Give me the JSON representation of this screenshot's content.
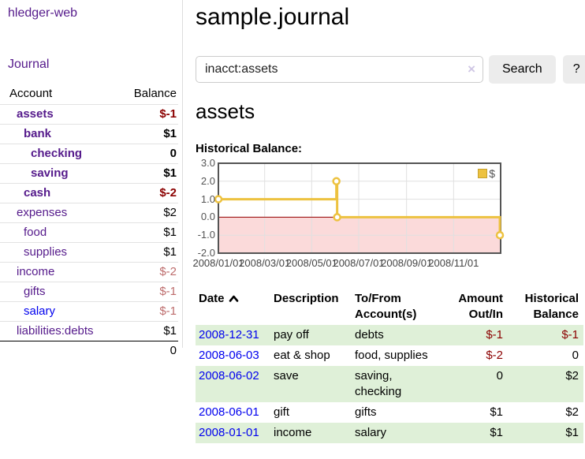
{
  "app": {
    "title": "hledger-web",
    "nav_journal": "Journal"
  },
  "sidebar": {
    "columns": {
      "account": "Account",
      "balance": "Balance"
    },
    "accounts": [
      {
        "name": "assets",
        "depth": 1,
        "bold": true,
        "balance": "$-1"
      },
      {
        "name": "bank",
        "depth": 2,
        "bold": true,
        "balance": "$1"
      },
      {
        "name": "checking",
        "depth": 3,
        "bold": true,
        "balance": "0"
      },
      {
        "name": "saving",
        "depth": 3,
        "bold": true,
        "balance": "$1"
      },
      {
        "name": "cash",
        "depth": 2,
        "bold": true,
        "balance": "$-2"
      },
      {
        "name": "expenses",
        "depth": 1,
        "bold": false,
        "balance": "$2"
      },
      {
        "name": "food",
        "depth": 2,
        "bold": false,
        "balance": "$1"
      },
      {
        "name": "supplies",
        "depth": 2,
        "bold": false,
        "balance": "$1"
      },
      {
        "name": "income",
        "depth": 1,
        "bold": false,
        "balance": "$-2"
      },
      {
        "name": "gifts",
        "depth": 2,
        "bold": false,
        "balance": "$-1"
      },
      {
        "name": "salary",
        "depth": 2,
        "bold": false,
        "balance": "$-1",
        "unvisited": true
      },
      {
        "name": "liabilities:debts",
        "depth": 1,
        "bold": false,
        "balance": "$1"
      }
    ],
    "total": "0"
  },
  "header": {
    "title": "sample.journal"
  },
  "search": {
    "value": "inacct:assets",
    "clear_icon": "×",
    "button": "Search",
    "help_button": "?"
  },
  "page": {
    "heading": "assets",
    "chart_label": "Historical Balance:"
  },
  "chart_data": {
    "type": "line",
    "title": "Historical Balance of assets",
    "series": [
      {
        "name": "$",
        "color": "#edc240",
        "step": true,
        "points": [
          [
            "2008-01-01",
            1
          ],
          [
            "2008-06-02",
            2
          ],
          [
            "2008-06-03",
            0
          ],
          [
            "2008-12-31",
            -1
          ]
        ]
      }
    ],
    "x_range": [
      "2008-01-01",
      "2009-01-01"
    ],
    "ylim": [
      -2,
      3
    ],
    "yticks": [
      3.0,
      2.0,
      1.0,
      0.0,
      -1.0,
      -2.0
    ],
    "xticks": [
      {
        "date": "2008-01-01",
        "label": "2008/01/01"
      },
      {
        "date": "2008-03-01",
        "label": "2008/03/01"
      },
      {
        "date": "2008-05-01",
        "label": "2008/05/01"
      },
      {
        "date": "2008-07-01",
        "label": "2008/07/01"
      },
      {
        "date": "2008-09-01",
        "label": "2008/09/01"
      },
      {
        "date": "2008-11-01",
        "label": "2008/11/01"
      }
    ],
    "legend": {
      "label": "$",
      "position": "top-right"
    },
    "grid": true,
    "grid_color": "#e0e0e0",
    "plot_border_color": "#545454",
    "negative_region_color": "#fbdada",
    "zero_line_color": "#990000"
  },
  "transactions": {
    "columns": [
      "Date",
      "Description",
      "To/From Account(s)",
      "Amount Out/In",
      "Historical Balance"
    ],
    "sort": {
      "column": "Date",
      "direction": "ascending"
    },
    "rows": [
      {
        "date": "2008-12-31",
        "description": "pay off",
        "accounts": "debts",
        "amount": "$-1",
        "balance": "$-1"
      },
      {
        "date": "2008-06-03",
        "description": "eat & shop",
        "accounts": "food, supplies",
        "amount": "$-2",
        "balance": "0"
      },
      {
        "date": "2008-06-02",
        "description": "save",
        "accounts": "saving, checking",
        "amount": "0",
        "balance": "$2"
      },
      {
        "date": "2008-06-01",
        "description": "gift",
        "accounts": "gifts",
        "amount": "$1",
        "balance": "$2"
      },
      {
        "date": "2008-01-01",
        "description": "income",
        "accounts": "salary",
        "amount": "$1",
        "balance": "$1"
      }
    ]
  }
}
